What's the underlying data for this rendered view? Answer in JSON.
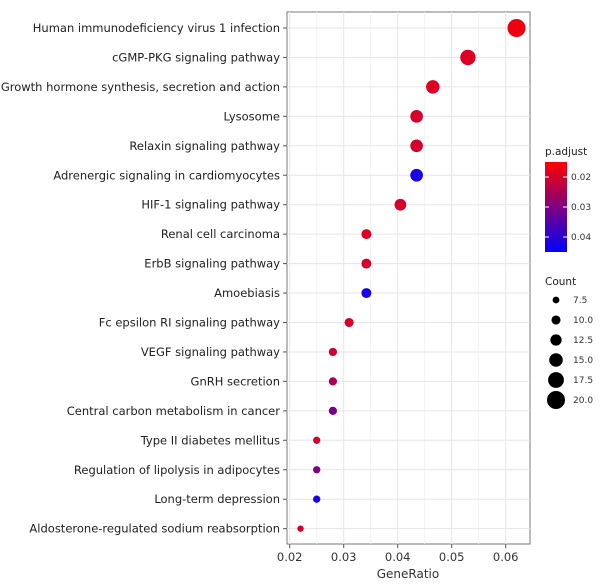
{
  "chart_data": {
    "type": "scatter",
    "title": "",
    "xlabel": "GeneRatio",
    "ylabel": "",
    "xlim": [
      0.0195,
      0.0645
    ],
    "xticks": [
      0.02,
      0.03,
      0.04,
      0.05,
      0.06
    ],
    "xtick_labels": [
      "0.02",
      "0.03",
      "0.04",
      "0.05",
      "0.06"
    ],
    "grid": true,
    "categories": [
      "Human immunodeficiency virus 1 infection",
      "cGMP-PKG signaling pathway",
      "Growth hormone synthesis, secretion and action",
      "Lysosome",
      "Relaxin signaling pathway",
      "Adrenergic signaling in cardiomyocytes",
      "HIF-1 signaling pathway",
      "Renal cell carcinoma",
      "ErbB signaling pathway",
      "Amoebiasis",
      "Fc epsilon RI signaling pathway",
      "VEGF signaling pathway",
      "GnRH secretion",
      "Central carbon metabolism in cancer",
      "Type II diabetes mellitus",
      "Regulation of lipolysis in adipocytes",
      "Long-term depression",
      "Aldosterone-regulated sodium reabsorption"
    ],
    "gene_ratio": [
      0.062,
      0.053,
      0.0465,
      0.0435,
      0.0435,
      0.0435,
      0.0405,
      0.0342,
      0.0342,
      0.0342,
      0.031,
      0.028,
      0.028,
      0.028,
      0.025,
      0.025,
      0.025,
      0.022
    ],
    "count": [
      20,
      17,
      15,
      14,
      14,
      14,
      13,
      11,
      11,
      11,
      10,
      9,
      9,
      9,
      8,
      8,
      8,
      7
    ],
    "p_adjust": [
      0.017,
      0.019,
      0.019,
      0.02,
      0.02,
      0.042,
      0.02,
      0.019,
      0.02,
      0.042,
      0.02,
      0.021,
      0.025,
      0.031,
      0.02,
      0.03,
      0.042,
      0.02
    ],
    "legend_color": {
      "title": "p.adjust",
      "range": [
        0.015,
        0.045
      ],
      "ticks": [
        0.02,
        0.03,
        0.04
      ],
      "tick_labels": [
        "0.02",
        "0.03",
        "0.04"
      ],
      "low_color": "#ff0000",
      "high_color": "#0000ff",
      "placement": "right"
    },
    "legend_size": {
      "title": "Count",
      "values": [
        7.5,
        10.0,
        12.5,
        15.0,
        17.5,
        20.0
      ],
      "labels": [
        "7.5",
        "10.0",
        "12.5",
        "15.0",
        "17.5",
        "20.0"
      ],
      "placement": "right"
    }
  }
}
